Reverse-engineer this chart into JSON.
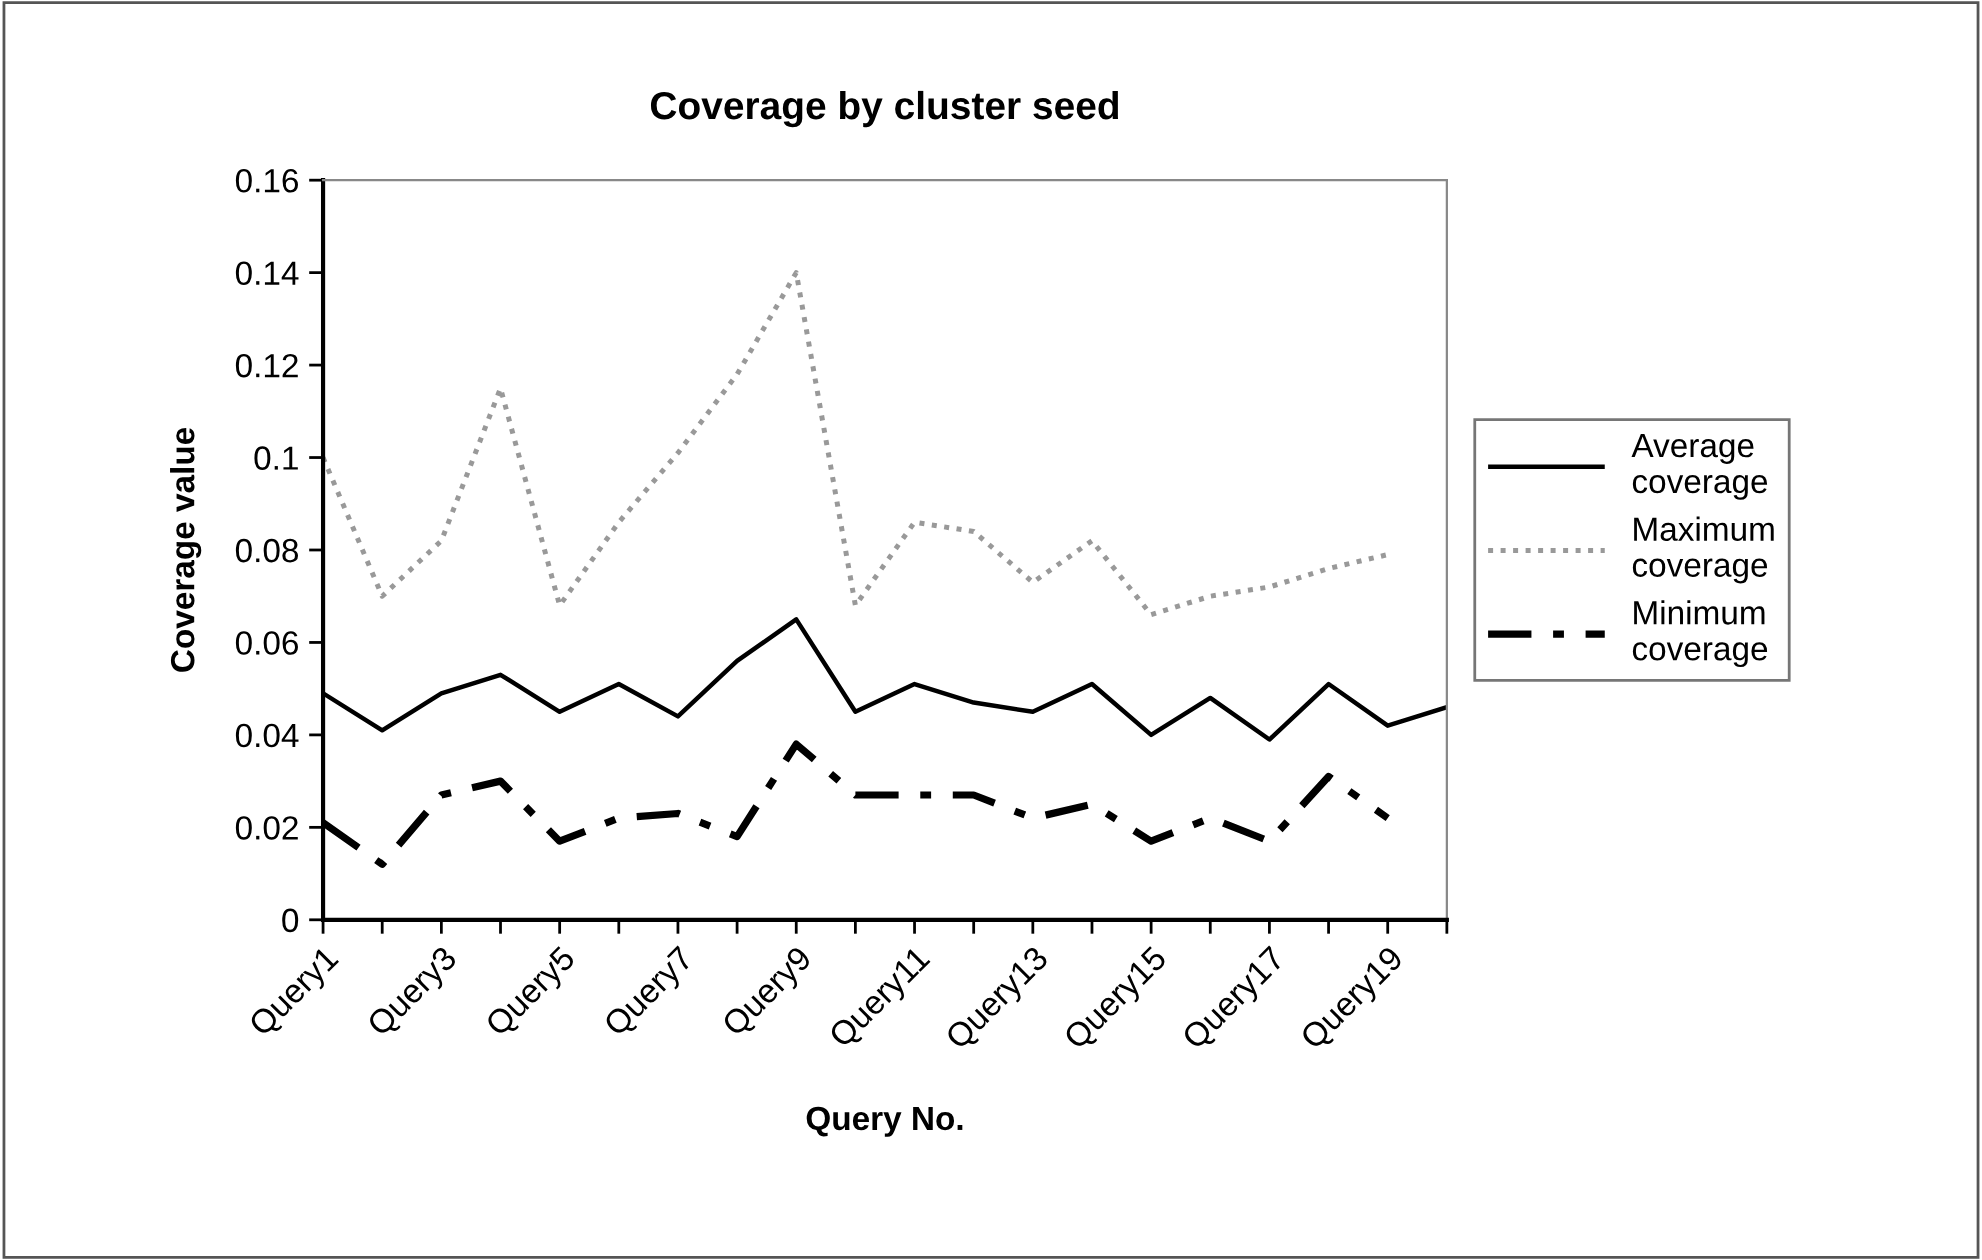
{
  "chart_data": {
    "type": "line",
    "title": "Coverage by cluster seed",
    "xlabel": "Query No.",
    "ylabel": "Coverage value",
    "categories": [
      "Query1",
      null,
      "Query3",
      null,
      "Query5",
      null,
      "Query7",
      null,
      "Query9",
      null,
      "Query11",
      null,
      "Query13",
      null,
      "Query15",
      null,
      "Query17",
      null,
      "Query19",
      null
    ],
    "series": [
      {
        "name": "Average coverage",
        "color": "#000000",
        "line_style": "solid",
        "values": [
          0.049,
          0.041,
          0.049,
          0.053,
          0.045,
          0.051,
          0.044,
          0.056,
          0.065,
          0.045,
          0.051,
          0.047,
          0.045,
          0.051,
          0.04,
          0.048,
          0.039,
          0.051,
          0.042,
          0.046
        ]
      },
      {
        "name": "Maximum coverage",
        "color": "#999999",
        "line_style": "dotted",
        "values": [
          0.1,
          0.07,
          0.082,
          0.115,
          0.068,
          0.086,
          0.101,
          0.118,
          0.14,
          0.068,
          0.086,
          0.084,
          0.073,
          0.082,
          0.066,
          0.07,
          0.072,
          0.076,
          0.079,
          null
        ]
      },
      {
        "name": "Minimum coverage",
        "color": "#000000",
        "line_style": "dashdot",
        "values": [
          0.021,
          0.012,
          0.027,
          0.03,
          0.017,
          0.022,
          0.023,
          0.018,
          0.038,
          0.027,
          0.027,
          0.027,
          0.022,
          0.025,
          0.017,
          0.022,
          0.017,
          0.031,
          0.022,
          null
        ]
      }
    ],
    "ylim": [
      0,
      0.16
    ],
    "yticks": [
      0,
      0.02,
      0.04,
      0.06,
      0.08,
      0.1,
      0.12,
      0.14,
      0.16
    ],
    "grid": false,
    "legend": "right",
    "marker": "none"
  }
}
